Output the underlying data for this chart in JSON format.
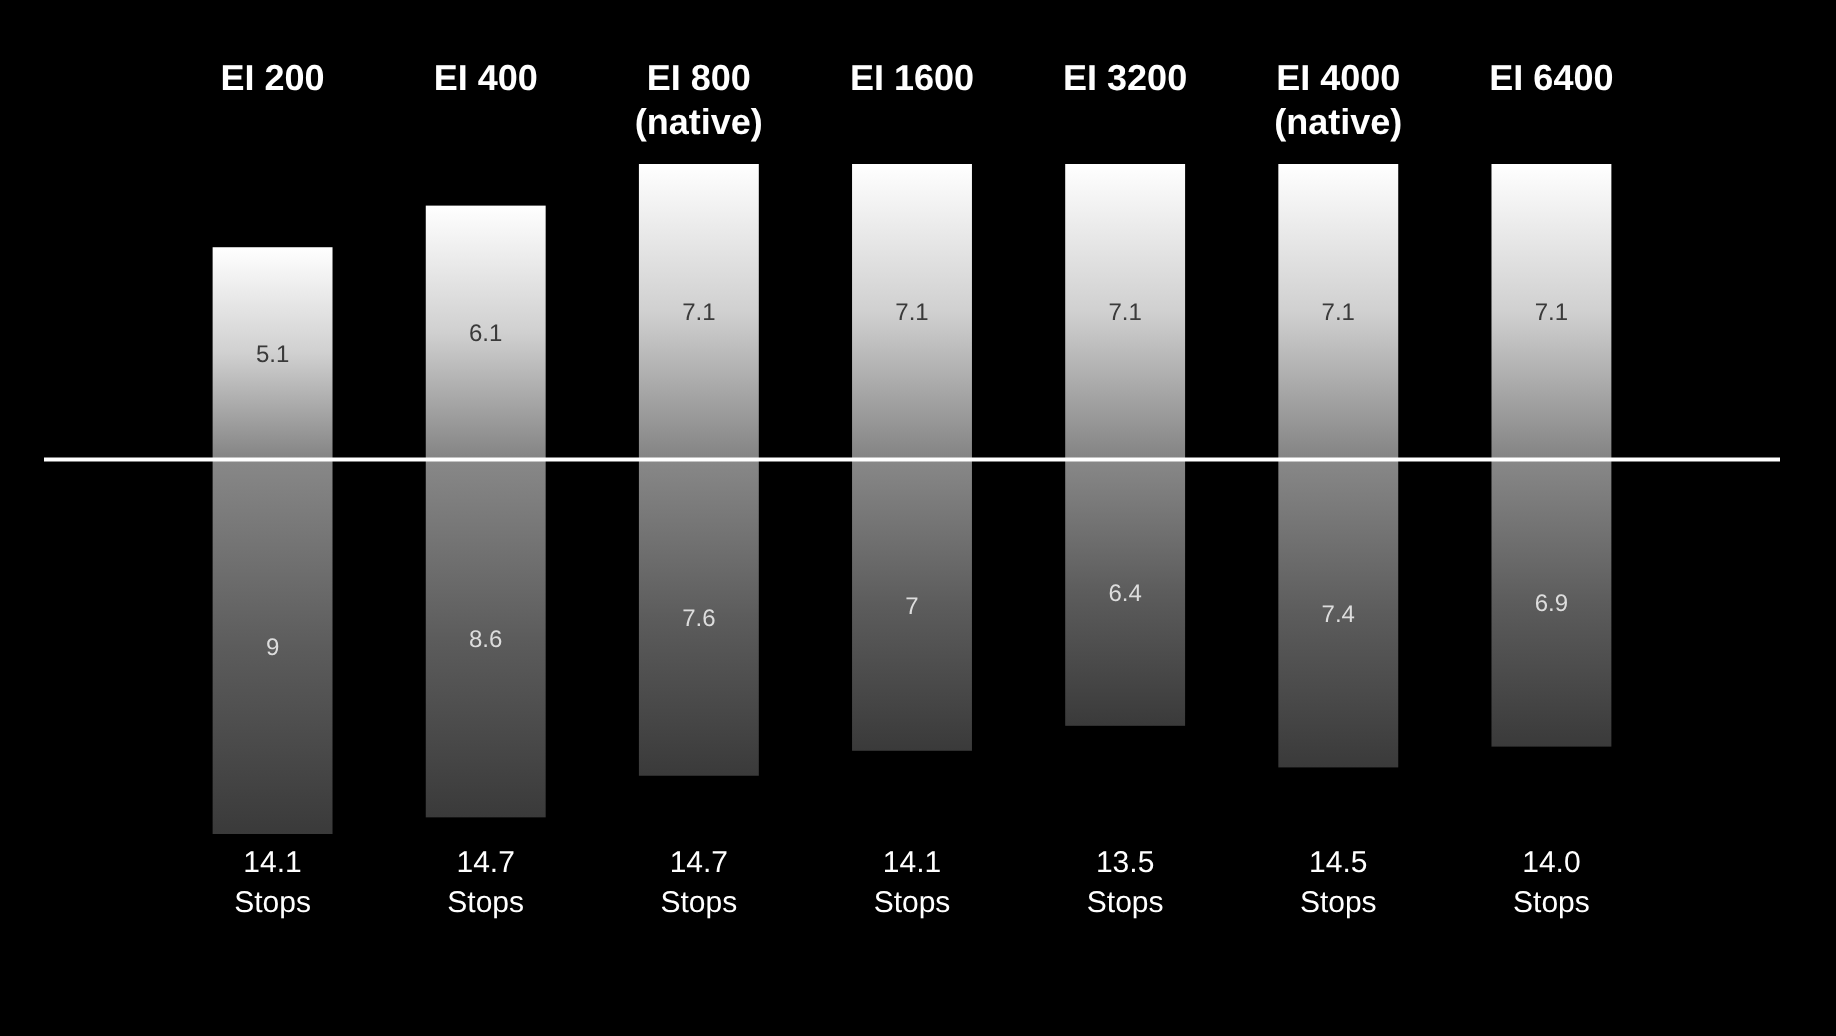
{
  "chart_data": {
    "type": "bar",
    "stacked": true,
    "categories": [
      "EI 200",
      "EI 400",
      "EI 800\n(native)",
      "EI 1600",
      "EI 3200",
      "EI 4000\n(native)",
      "EI 6400"
    ],
    "series": [
      {
        "color": "#d0d0d0",
        "values": [
          5.1,
          6.1,
          7.1,
          7.1,
          7.1,
          7.1,
          7.1
        ],
        "value_labels": [
          "5.1",
          "6.1",
          "7.1",
          "7.1",
          "7.1",
          "7.1",
          "7.1"
        ]
      },
      {
        "color": "#5c5c5c",
        "values": [
          -9,
          -8.6,
          -7.6,
          -7,
          -6.4,
          -7.4,
          -6.9
        ]
      }
    ],
    "annotations": [
      "9",
      "8.6",
      "7.6",
      "7",
      "6.4",
      "7.4",
      "6.9",
      "14.1\nStops",
      "14.7\nStops",
      "14.7\nStops",
      "14.1\nStops",
      "13.5\nStops",
      "14.5\nStops",
      "14.0\nStops"
    ]
  }
}
